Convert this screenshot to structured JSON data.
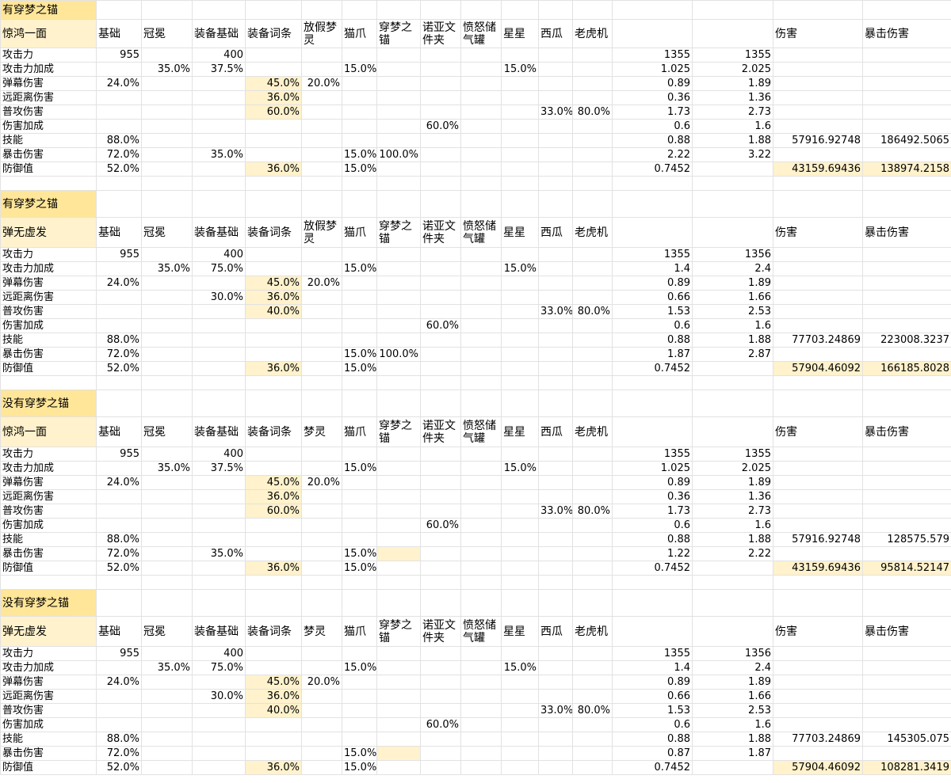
{
  "blocks": [
    {
      "title": {
        "text": "有穿梦之锚",
        "fill": "#ffe699"
      },
      "header": [
        {
          "text": "惊鸿一面",
          "fill": "#fff2cc"
        },
        "基础",
        "冠冕",
        "装备基础",
        "装备词条",
        "放假梦灵",
        "猫爪",
        "穿梦之锚",
        "诺亚文件夹",
        "愤怒储气罐",
        "星星",
        "西瓜",
        "老虎机",
        null,
        null,
        "伤害",
        "暴击伤害"
      ],
      "rows": [
        [
          "攻击力",
          "955",
          null,
          "400",
          null,
          null,
          null,
          null,
          null,
          null,
          null,
          null,
          null,
          "1355",
          "1355",
          null,
          null
        ],
        [
          "攻击力加成",
          null,
          "35.0%",
          "37.5%",
          null,
          null,
          "15.0%",
          null,
          null,
          null,
          "15.0%",
          null,
          null,
          "1.025",
          "2.025",
          null,
          null
        ],
        [
          "弹幕伤害",
          "24.0%",
          null,
          null,
          {
            "text": "45.0%",
            "fill": "#fff2cc"
          },
          "20.0%",
          null,
          null,
          null,
          null,
          null,
          null,
          null,
          "0.89",
          "1.89",
          null,
          null
        ],
        [
          "远距离伤害",
          null,
          null,
          null,
          {
            "text": "36.0%",
            "fill": "#fff2cc"
          },
          null,
          null,
          null,
          null,
          null,
          null,
          null,
          null,
          "0.36",
          "1.36",
          null,
          null
        ],
        [
          "普攻伤害",
          null,
          null,
          null,
          {
            "text": "60.0%",
            "fill": "#fff2cc"
          },
          null,
          null,
          null,
          null,
          null,
          null,
          "33.0%",
          "80.0%",
          "1.73",
          "2.73",
          null,
          null
        ],
        [
          "伤害加成",
          null,
          null,
          null,
          null,
          null,
          null,
          null,
          "60.0%",
          null,
          null,
          null,
          null,
          "0.6",
          "1.6",
          null,
          null
        ],
        [
          "技能",
          "88.0%",
          null,
          null,
          null,
          null,
          null,
          null,
          null,
          null,
          null,
          null,
          null,
          "0.88",
          "1.88",
          "57916.92748",
          "186492.5065"
        ],
        [
          "暴击伤害",
          "72.0%",
          null,
          "35.0%",
          null,
          null,
          "15.0%",
          "100.0%",
          null,
          null,
          null,
          null,
          null,
          "2.22",
          "3.22",
          null,
          null
        ],
        [
          "防御值",
          "52.0%",
          null,
          null,
          {
            "text": "36.0%",
            "fill": "#fff2cc"
          },
          null,
          "15.0%",
          null,
          null,
          null,
          null,
          null,
          null,
          "0.7452",
          null,
          {
            "text": "43159.69436",
            "fill": "#fff2cc"
          },
          {
            "text": "138974.2158",
            "fill": "#fff2cc"
          }
        ]
      ]
    },
    {
      "title": {
        "text": "有穿梦之锚",
        "fill": "#ffe699"
      },
      "header": [
        {
          "text": "弹无虚发",
          "fill": "#fff2cc"
        },
        "基础",
        "冠冕",
        "装备基础",
        "装备词条",
        "放假梦灵",
        "猫爪",
        "穿梦之锚",
        "诺亚文件夹",
        "愤怒储气罐",
        "星星",
        "西瓜",
        "老虎机",
        null,
        null,
        "伤害",
        "暴击伤害"
      ],
      "rows": [
        [
          "攻击力",
          "955",
          null,
          "400",
          null,
          null,
          null,
          null,
          null,
          null,
          null,
          null,
          null,
          "1355",
          "1356",
          null,
          null
        ],
        [
          "攻击力加成",
          null,
          "35.0%",
          "75.0%",
          null,
          null,
          "15.0%",
          null,
          null,
          null,
          "15.0%",
          null,
          null,
          "1.4",
          "2.4",
          null,
          null
        ],
        [
          "弹幕伤害",
          "24.0%",
          null,
          null,
          {
            "text": "45.0%",
            "fill": "#fff2cc"
          },
          "20.0%",
          null,
          null,
          null,
          null,
          null,
          null,
          null,
          "0.89",
          "1.89",
          null,
          null
        ],
        [
          "远距离伤害",
          null,
          null,
          "30.0%",
          {
            "text": "36.0%",
            "fill": "#fff2cc"
          },
          null,
          null,
          null,
          null,
          null,
          null,
          null,
          null,
          "0.66",
          "1.66",
          null,
          null
        ],
        [
          "普攻伤害",
          null,
          null,
          null,
          {
            "text": "40.0%",
            "fill": "#fff2cc"
          },
          null,
          null,
          null,
          null,
          null,
          null,
          "33.0%",
          "80.0%",
          "1.53",
          "2.53",
          null,
          null
        ],
        [
          "伤害加成",
          null,
          null,
          null,
          null,
          null,
          null,
          null,
          "60.0%",
          null,
          null,
          null,
          null,
          "0.6",
          "1.6",
          null,
          null
        ],
        [
          "技能",
          "88.0%",
          null,
          null,
          null,
          null,
          null,
          null,
          null,
          null,
          null,
          null,
          null,
          "0.88",
          "1.88",
          "77703.24869",
          "223008.3237"
        ],
        [
          "暴击伤害",
          "72.0%",
          null,
          null,
          null,
          null,
          "15.0%",
          "100.0%",
          null,
          null,
          null,
          null,
          null,
          "1.87",
          "2.87",
          null,
          null
        ],
        [
          "防御值",
          "52.0%",
          null,
          null,
          {
            "text": "36.0%",
            "fill": "#fff2cc"
          },
          null,
          "15.0%",
          null,
          null,
          null,
          null,
          null,
          null,
          "0.7452",
          null,
          {
            "text": "57904.46092",
            "fill": "#fff2cc"
          },
          {
            "text": "166185.8028",
            "fill": "#fff2cc"
          }
        ]
      ]
    },
    {
      "title": {
        "text": "没有穿梦之锚",
        "fill": "#ffe699"
      },
      "header": [
        {
          "text": "惊鸿一面",
          "fill": "#fff2cc"
        },
        "基础",
        "冠冕",
        "装备基础",
        "装备词条",
        "梦灵",
        "猫爪",
        "穿梦之锚",
        "诺亚文件夹",
        "愤怒储气罐",
        "星星",
        "西瓜",
        "老虎机",
        null,
        null,
        "伤害",
        "暴击伤害"
      ],
      "rows": [
        [
          "攻击力",
          "955",
          null,
          "400",
          null,
          null,
          null,
          null,
          null,
          null,
          null,
          null,
          null,
          "1355",
          "1355",
          null,
          null
        ],
        [
          "攻击力加成",
          null,
          "35.0%",
          "37.5%",
          null,
          null,
          "15.0%",
          null,
          null,
          null,
          "15.0%",
          null,
          null,
          "1.025",
          "2.025",
          null,
          null
        ],
        [
          "弹幕伤害",
          "24.0%",
          null,
          null,
          {
            "text": "45.0%",
            "fill": "#fff2cc"
          },
          "20.0%",
          null,
          null,
          null,
          null,
          null,
          null,
          null,
          "0.89",
          "1.89",
          null,
          null
        ],
        [
          "远距离伤害",
          null,
          null,
          null,
          {
            "text": "36.0%",
            "fill": "#fff2cc"
          },
          null,
          null,
          null,
          null,
          null,
          null,
          null,
          null,
          "0.36",
          "1.36",
          null,
          null
        ],
        [
          "普攻伤害",
          null,
          null,
          null,
          {
            "text": "60.0%",
            "fill": "#fff2cc"
          },
          null,
          null,
          null,
          null,
          null,
          null,
          "33.0%",
          "80.0%",
          "1.73",
          "2.73",
          null,
          null
        ],
        [
          "伤害加成",
          null,
          null,
          null,
          null,
          null,
          null,
          null,
          "60.0%",
          null,
          null,
          null,
          null,
          "0.6",
          "1.6",
          null,
          null
        ],
        [
          "技能",
          "88.0%",
          null,
          null,
          null,
          null,
          null,
          null,
          null,
          null,
          null,
          null,
          null,
          "0.88",
          "1.88",
          "57916.92748",
          "128575.579"
        ],
        [
          "暴击伤害",
          "72.0%",
          null,
          "35.0%",
          null,
          null,
          "15.0%",
          {
            "fill": "#fff2cc"
          },
          null,
          null,
          null,
          null,
          null,
          "1.22",
          "2.22",
          null,
          null
        ],
        [
          "防御值",
          "52.0%",
          null,
          null,
          {
            "text": "36.0%",
            "fill": "#fff2cc"
          },
          null,
          "15.0%",
          null,
          null,
          null,
          null,
          null,
          null,
          "0.7452",
          null,
          {
            "text": "43159.69436",
            "fill": "#fff2cc"
          },
          {
            "text": "95814.52147",
            "fill": "#fff2cc"
          }
        ]
      ]
    },
    {
      "title": {
        "text": "没有穿梦之锚",
        "fill": "#ffe699"
      },
      "header": [
        {
          "text": "弹无虚发",
          "fill": "#fff2cc"
        },
        "基础",
        "冠冕",
        "装备基础",
        "装备词条",
        "梦灵",
        "猫爪",
        "穿梦之锚",
        "诺亚文件夹",
        "愤怒储气罐",
        "星星",
        "西瓜",
        "老虎机",
        null,
        null,
        "伤害",
        "暴击伤害"
      ],
      "rows": [
        [
          "攻击力",
          "955",
          null,
          "400",
          null,
          null,
          null,
          null,
          null,
          null,
          null,
          null,
          null,
          "1355",
          "1356",
          null,
          null
        ],
        [
          "攻击力加成",
          null,
          "35.0%",
          "75.0%",
          null,
          null,
          "15.0%",
          null,
          null,
          null,
          "15.0%",
          null,
          null,
          "1.4",
          "2.4",
          null,
          null
        ],
        [
          "弹幕伤害",
          "24.0%",
          null,
          null,
          {
            "text": "45.0%",
            "fill": "#fff2cc"
          },
          "20.0%",
          null,
          null,
          null,
          null,
          null,
          null,
          null,
          "0.89",
          "1.89",
          null,
          null
        ],
        [
          "远距离伤害",
          null,
          null,
          "30.0%",
          {
            "text": "36.0%",
            "fill": "#fff2cc"
          },
          null,
          null,
          null,
          null,
          null,
          null,
          null,
          null,
          "0.66",
          "1.66",
          null,
          null
        ],
        [
          "普攻伤害",
          null,
          null,
          null,
          {
            "text": "40.0%",
            "fill": "#fff2cc"
          },
          null,
          null,
          null,
          null,
          null,
          null,
          "33.0%",
          "80.0%",
          "1.53",
          "2.53",
          null,
          null
        ],
        [
          "伤害加成",
          null,
          null,
          null,
          null,
          null,
          null,
          null,
          "60.0%",
          null,
          null,
          null,
          null,
          "0.6",
          "1.6",
          null,
          null
        ],
        [
          "技能",
          "88.0%",
          null,
          null,
          null,
          null,
          null,
          null,
          null,
          null,
          null,
          null,
          null,
          "0.88",
          "1.88",
          "77703.24869",
          "145305.075"
        ],
        [
          "暴击伤害",
          "72.0%",
          null,
          null,
          null,
          null,
          "15.0%",
          {
            "fill": "#fff2cc"
          },
          null,
          null,
          null,
          null,
          null,
          "0.87",
          "1.87",
          null,
          null
        ],
        [
          "防御值",
          "52.0%",
          null,
          null,
          {
            "text": "36.0%",
            "fill": "#fff2cc"
          },
          null,
          "15.0%",
          null,
          null,
          null,
          null,
          null,
          null,
          "0.7452",
          null,
          {
            "text": "57904.46092",
            "fill": "#fff2cc"
          },
          {
            "text": "108281.3419",
            "fill": "#fff2cc"
          }
        ]
      ]
    }
  ]
}
